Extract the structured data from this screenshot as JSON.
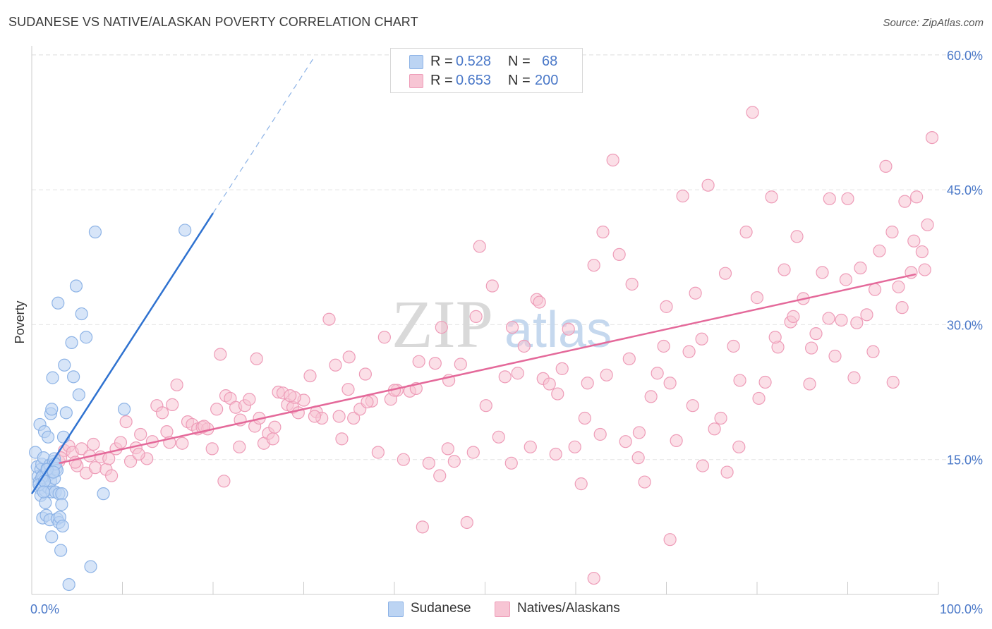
{
  "title": "SUDANESE VS NATIVE/ALASKAN POVERTY CORRELATION CHART",
  "source": "Source: ZipAtlas.com",
  "watermark": {
    "zip": "ZIP",
    "atlas": "atlas"
  },
  "legend": {
    "rows": [
      {
        "r_label": "R =",
        "r_value": "0.528",
        "n_label": "N =",
        "n_value": "68"
      },
      {
        "r_label": "R =",
        "r_value": "0.653",
        "n_label": "N =",
        "n_value": "200"
      }
    ]
  },
  "colors": {
    "blue_fill": "#bcd4f3",
    "blue_edge": "#8db3e6",
    "blue_line": "#2f72d0",
    "pink_fill": "#f7c5d4",
    "pink_edge": "#ee9cb8",
    "pink_line": "#e4699a",
    "tick_label": "#4a78c8",
    "grid": "#e4e4e4"
  },
  "chart_data": {
    "type": "scatter",
    "title": "SUDANESE VS NATIVE/ALASKAN POVERTY CORRELATION CHART",
    "xlabel": "",
    "ylabel": "Poverty",
    "x_tick_labels": [
      "0.0%",
      "100.0%"
    ],
    "y_tick_labels": [
      "15.0%",
      "30.0%",
      "45.0%",
      "60.0%"
    ],
    "y_ticks": [
      15,
      30,
      45,
      60
    ],
    "xlim": [
      0,
      100
    ],
    "ylim": [
      0,
      61
    ],
    "grid": true,
    "legend_position": "bottom",
    "series": [
      {
        "name": "Sudanese",
        "color": "#8db3e6",
        "trend": {
          "x": [
            0,
            20
          ],
          "y": [
            11.2,
            42.4
          ],
          "dashed_to": [
            31,
            59.5
          ]
        },
        "points": [
          [
            0.4,
            15.8
          ],
          [
            0.6,
            14.2
          ],
          [
            0.7,
            13.1
          ],
          [
            0.8,
            12.5
          ],
          [
            0.9,
            11.8
          ],
          [
            0.9,
            18.9
          ],
          [
            1.0,
            13.9
          ],
          [
            1.0,
            11.0
          ],
          [
            1.1,
            14.5
          ],
          [
            1.2,
            13.2
          ],
          [
            1.2,
            8.5
          ],
          [
            1.3,
            15.2
          ],
          [
            1.3,
            12.9
          ],
          [
            1.4,
            18.1
          ],
          [
            1.5,
            11.5
          ],
          [
            1.5,
            10.2
          ],
          [
            1.6,
            13.6
          ],
          [
            1.6,
            8.8
          ],
          [
            1.7,
            14.0
          ],
          [
            1.8,
            17.5
          ],
          [
            1.8,
            11.9
          ],
          [
            1.9,
            13.3
          ],
          [
            2.0,
            14.4
          ],
          [
            2.0,
            8.3
          ],
          [
            2.1,
            12.6
          ],
          [
            2.1,
            20.1
          ],
          [
            2.2,
            11.4
          ],
          [
            2.2,
            6.4
          ],
          [
            2.2,
            20.6
          ],
          [
            2.3,
            24.1
          ],
          [
            2.3,
            13.6
          ],
          [
            2.4,
            14.8
          ],
          [
            2.5,
            12.9
          ],
          [
            2.5,
            15.1
          ],
          [
            2.6,
            11.4
          ],
          [
            2.7,
            14.0
          ],
          [
            2.8,
            13.8
          ],
          [
            2.8,
            8.4
          ],
          [
            2.9,
            32.4
          ],
          [
            3.0,
            8.0
          ],
          [
            3.0,
            11.2
          ],
          [
            3.1,
            8.6
          ],
          [
            3.2,
            4.9
          ],
          [
            3.3,
            11.2
          ],
          [
            3.3,
            10.0
          ],
          [
            3.4,
            7.6
          ],
          [
            3.5,
            17.5
          ],
          [
            3.6,
            25.5
          ],
          [
            3.8,
            20.2
          ],
          [
            4.1,
            1.1
          ],
          [
            4.4,
            28.0
          ],
          [
            4.6,
            24.2
          ],
          [
            4.9,
            34.3
          ],
          [
            5.2,
            22.2
          ],
          [
            5.5,
            31.2
          ],
          [
            6.0,
            28.6
          ],
          [
            6.5,
            3.1
          ],
          [
            7.0,
            40.3
          ],
          [
            7.9,
            11.2
          ],
          [
            10.2,
            20.6
          ],
          [
            16.9,
            40.5
          ],
          [
            2.6,
            14.5
          ],
          [
            1.1,
            13.0
          ],
          [
            0.8,
            12.2
          ],
          [
            1.7,
            13.9
          ],
          [
            1.4,
            12.6
          ],
          [
            2.4,
            13.6
          ],
          [
            1.3,
            11.4
          ]
        ]
      },
      {
        "name": "Natives/Alaskans",
        "color": "#ee9cb8",
        "trend": {
          "x": [
            3,
            97.5
          ],
          "y": [
            14.6,
            35.6
          ]
        },
        "points": [
          [
            2.4,
            13.9
          ],
          [
            3.0,
            14.8
          ],
          [
            3.6,
            16.0
          ],
          [
            4.1,
            16.5
          ],
          [
            4.5,
            15.8
          ],
          [
            5.0,
            14.3
          ],
          [
            5.5,
            16.2
          ],
          [
            6.0,
            13.5
          ],
          [
            6.4,
            15.4
          ],
          [
            7.0,
            14.1
          ],
          [
            7.6,
            15.3
          ],
          [
            8.2,
            13.9
          ],
          [
            8.8,
            13.2
          ],
          [
            9.3,
            16.2
          ],
          [
            9.8,
            16.9
          ],
          [
            10.4,
            19.2
          ],
          [
            10.9,
            14.8
          ],
          [
            11.5,
            16.3
          ],
          [
            12.0,
            17.8
          ],
          [
            12.7,
            15.1
          ],
          [
            13.3,
            17.0
          ],
          [
            13.8,
            21.0
          ],
          [
            14.4,
            20.2
          ],
          [
            14.9,
            18.1
          ],
          [
            15.5,
            21.1
          ],
          [
            16.0,
            23.3
          ],
          [
            16.6,
            16.8
          ],
          [
            17.2,
            19.2
          ],
          [
            17.7,
            18.9
          ],
          [
            18.3,
            18.4
          ],
          [
            18.8,
            18.6
          ],
          [
            19.4,
            18.4
          ],
          [
            19.9,
            16.2
          ],
          [
            20.4,
            20.6
          ],
          [
            20.8,
            26.7
          ],
          [
            21.4,
            22.1
          ],
          [
            21.9,
            21.8
          ],
          [
            22.5,
            20.8
          ],
          [
            22.9,
            16.4
          ],
          [
            23.5,
            21.0
          ],
          [
            24.0,
            21.7
          ],
          [
            24.6,
            18.7
          ],
          [
            25.1,
            19.6
          ],
          [
            25.6,
            16.8
          ],
          [
            26.1,
            17.9
          ],
          [
            26.6,
            17.3
          ],
          [
            27.2,
            22.5
          ],
          [
            27.7,
            22.4
          ],
          [
            28.2,
            21.1
          ],
          [
            28.8,
            20.8
          ],
          [
            29.4,
            20.2
          ],
          [
            30.0,
            21.6
          ],
          [
            30.7,
            24.3
          ],
          [
            31.4,
            20.3
          ],
          [
            32.0,
            19.6
          ],
          [
            32.8,
            30.6
          ],
          [
            33.5,
            25.5
          ],
          [
            34.2,
            17.3
          ],
          [
            34.9,
            22.8
          ],
          [
            35.5,
            19.6
          ],
          [
            36.2,
            20.6
          ],
          [
            36.8,
            24.5
          ],
          [
            37.5,
            21.5
          ],
          [
            38.2,
            15.8
          ],
          [
            38.9,
            28.6
          ],
          [
            39.6,
            21.7
          ],
          [
            40.3,
            22.7
          ],
          [
            41.0,
            15.0
          ],
          [
            41.7,
            22.6
          ],
          [
            42.4,
            22.9
          ],
          [
            43.1,
            7.5
          ],
          [
            43.8,
            14.6
          ],
          [
            44.5,
            25.7
          ],
          [
            45.2,
            29.7
          ],
          [
            45.9,
            16.2
          ],
          [
            46.6,
            14.8
          ],
          [
            47.3,
            25.6
          ],
          [
            48.0,
            8.0
          ],
          [
            48.7,
            15.8
          ],
          [
            49.4,
            38.7
          ],
          [
            50.1,
            21.0
          ],
          [
            50.8,
            34.3
          ],
          [
            51.5,
            17.5
          ],
          [
            52.2,
            24.2
          ],
          [
            52.9,
            14.6
          ],
          [
            53.6,
            24.6
          ],
          [
            54.3,
            27.6
          ],
          [
            55.0,
            16.4
          ],
          [
            55.7,
            32.8
          ],
          [
            56.4,
            24.0
          ],
          [
            57.1,
            23.4
          ],
          [
            57.8,
            15.6
          ],
          [
            58.5,
            25.1
          ],
          [
            59.2,
            29.5
          ],
          [
            59.9,
            16.4
          ],
          [
            60.6,
            12.3
          ],
          [
            61.3,
            23.5
          ],
          [
            62.0,
            36.6
          ],
          [
            62.7,
            17.8
          ],
          [
            63.4,
            24.4
          ],
          [
            64.1,
            48.3
          ],
          [
            64.8,
            37.8
          ],
          [
            65.5,
            17.0
          ],
          [
            66.2,
            34.5
          ],
          [
            66.9,
            15.2
          ],
          [
            67.6,
            12.5
          ],
          [
            68.3,
            22.0
          ],
          [
            69.0,
            24.6
          ],
          [
            69.7,
            27.6
          ],
          [
            70.4,
            23.5
          ],
          [
            71.1,
            17.1
          ],
          [
            71.8,
            44.3
          ],
          [
            72.5,
            27.0
          ],
          [
            73.2,
            33.5
          ],
          [
            73.9,
            28.4
          ],
          [
            74.6,
            45.5
          ],
          [
            75.3,
            18.4
          ],
          [
            76.0,
            19.6
          ],
          [
            76.7,
            13.6
          ],
          [
            77.4,
            27.6
          ],
          [
            78.1,
            23.8
          ],
          [
            78.8,
            40.3
          ],
          [
            79.5,
            53.6
          ],
          [
            80.2,
            21.8
          ],
          [
            80.9,
            23.6
          ],
          [
            81.6,
            44.2
          ],
          [
            82.3,
            27.5
          ],
          [
            83.0,
            36.1
          ],
          [
            83.7,
            30.3
          ],
          [
            84.4,
            39.8
          ],
          [
            85.1,
            32.9
          ],
          [
            85.8,
            23.4
          ],
          [
            86.5,
            29.0
          ],
          [
            87.2,
            35.8
          ],
          [
            87.9,
            30.7
          ],
          [
            88.6,
            26.5
          ],
          [
            89.3,
            30.5
          ],
          [
            90.0,
            44.0
          ],
          [
            90.7,
            24.1
          ],
          [
            91.4,
            36.3
          ],
          [
            92.1,
            31.1
          ],
          [
            92.8,
            27.0
          ],
          [
            93.5,
            38.2
          ],
          [
            94.2,
            47.6
          ],
          [
            94.9,
            40.3
          ],
          [
            95.6,
            34.2
          ],
          [
            96.3,
            43.7
          ],
          [
            97.0,
            35.8
          ],
          [
            97.6,
            44.2
          ],
          [
            98.2,
            38.1
          ],
          [
            98.8,
            41.1
          ],
          [
            99.3,
            50.8
          ],
          [
            3.2,
            15.2
          ],
          [
            4.8,
            14.7
          ],
          [
            6.8,
            16.7
          ],
          [
            8.5,
            15.1
          ],
          [
            11.8,
            15.6
          ],
          [
            15.2,
            16.9
          ],
          [
            19.0,
            18.7
          ],
          [
            23.0,
            19.4
          ],
          [
            26.8,
            18.6
          ],
          [
            29.0,
            21.9
          ],
          [
            31.2,
            19.8
          ],
          [
            33.9,
            19.8
          ],
          [
            37.0,
            21.4
          ],
          [
            40.0,
            22.7
          ],
          [
            42.7,
            25.9
          ],
          [
            46.0,
            23.8
          ],
          [
            49.0,
            30.9
          ],
          [
            53.0,
            29.7
          ],
          [
            56.0,
            32.5
          ],
          [
            58.0,
            22.3
          ],
          [
            61.0,
            19.6
          ],
          [
            63.0,
            40.3
          ],
          [
            65.9,
            26.2
          ],
          [
            67.0,
            18.0
          ],
          [
            70.0,
            32.0
          ],
          [
            72.9,
            21.0
          ],
          [
            76.5,
            35.7
          ],
          [
            78.0,
            16.4
          ],
          [
            80.0,
            33.0
          ],
          [
            82.0,
            28.6
          ],
          [
            84.0,
            30.9
          ],
          [
            86.0,
            27.4
          ],
          [
            88.0,
            44.0
          ],
          [
            89.8,
            35.0
          ],
          [
            91.0,
            30.2
          ],
          [
            93.0,
            33.9
          ],
          [
            95.0,
            23.6
          ],
          [
            96.0,
            31.9
          ],
          [
            97.3,
            39.3
          ],
          [
            98.5,
            36.1
          ],
          [
            62.0,
            1.8
          ],
          [
            70.4,
            6.1
          ],
          [
            74.0,
            14.3
          ],
          [
            45.0,
            13.2
          ],
          [
            35.0,
            26.4
          ],
          [
            28.5,
            22.1
          ],
          [
            24.8,
            26.2
          ],
          [
            21.2,
            12.6
          ]
        ]
      }
    ]
  }
}
